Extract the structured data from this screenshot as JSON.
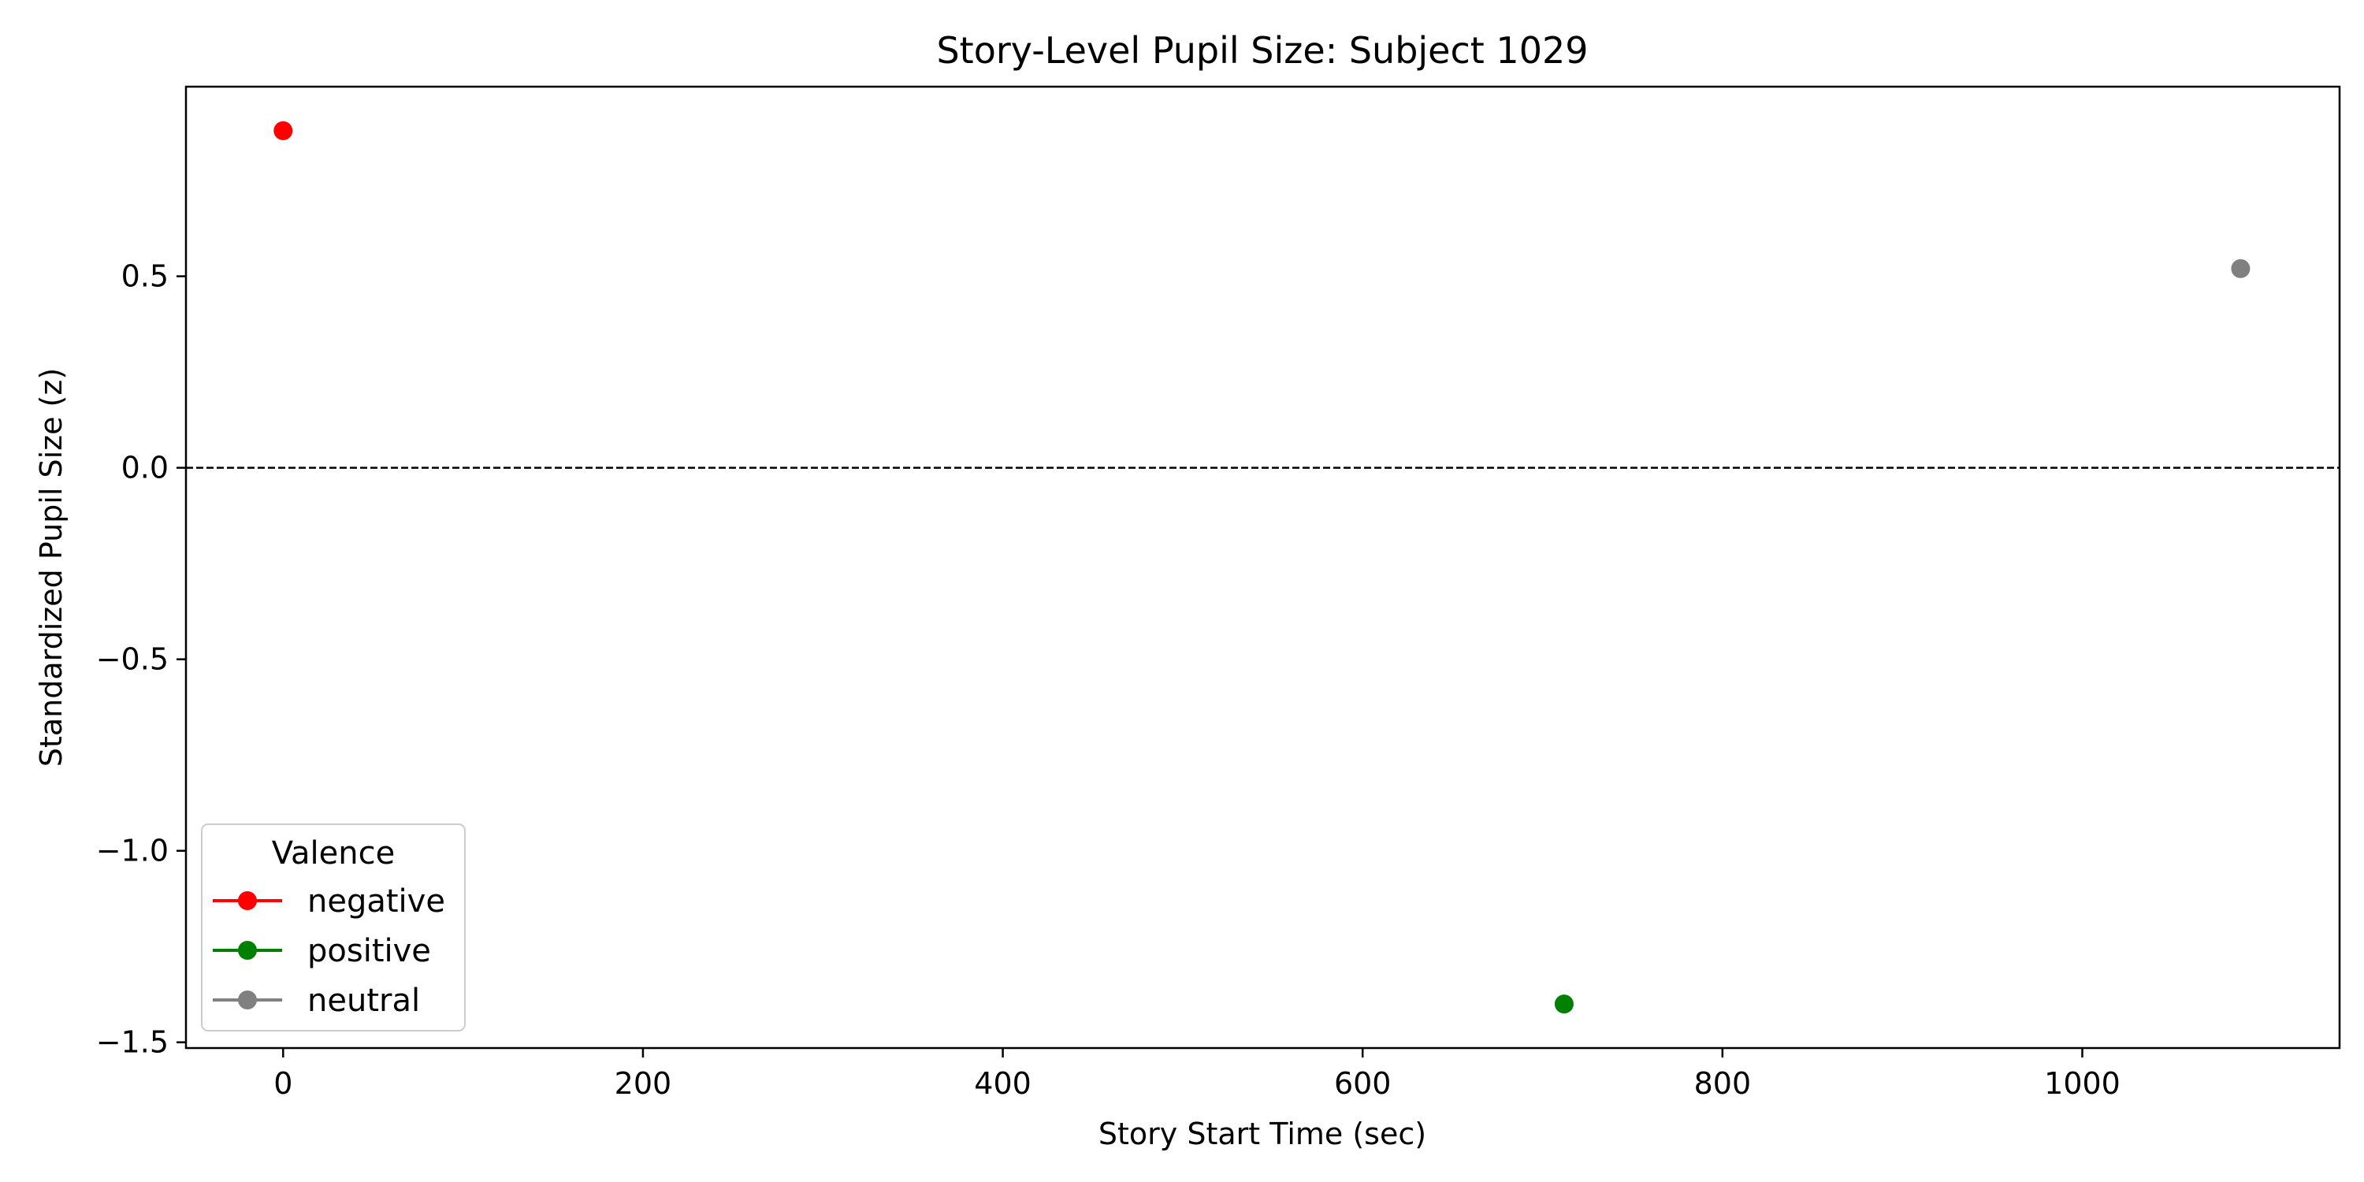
{
  "chart_data": {
    "type": "scatter",
    "title": "Story-Level Pupil Size: Subject 1029",
    "xlabel": "Story Start Time (sec)",
    "ylabel": "Standardized Pupil Size (z)",
    "xlim": [
      -54,
      1143
    ],
    "ylim": [
      -1.515,
      0.995
    ],
    "xticks": [
      0,
      200,
      400,
      600,
      800,
      1000
    ],
    "yticks": [
      -1.5,
      -1.0,
      -0.5,
      0.0,
      0.5
    ],
    "ytick_labels": [
      "−1.5",
      "−1.0",
      "−0.5",
      "0.0",
      "0.5"
    ],
    "reference_line": {
      "y": 0.0,
      "style": "dashed",
      "color": "#000000"
    },
    "grid": false,
    "legend": {
      "title": "Valence",
      "placement": "lower-left"
    },
    "series": [
      {
        "name": "negative",
        "color": "#ff0000",
        "points": [
          {
            "x": 0,
            "y": 0.88
          }
        ]
      },
      {
        "name": "positive",
        "color": "#008000",
        "points": [
          {
            "x": 712,
            "y": -1.4
          }
        ]
      },
      {
        "name": "neutral",
        "color": "#808080",
        "points": [
          {
            "x": 1088,
            "y": 0.52
          }
        ]
      }
    ]
  }
}
